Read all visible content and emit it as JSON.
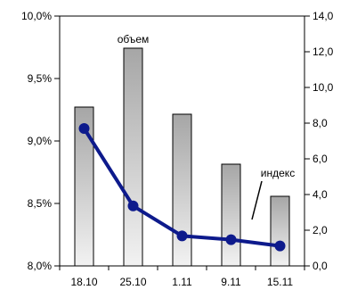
{
  "chart_data": {
    "type": "bar",
    "categories": [
      "18.10",
      "25.10",
      "1.11",
      "9.11",
      "15.11"
    ],
    "series": [
      {
        "name": "объем",
        "type": "bar",
        "axis": "right",
        "values": [
          8.9,
          12.2,
          8.5,
          5.7,
          3.9
        ]
      },
      {
        "name": "индекс",
        "type": "line",
        "axis": "left",
        "values": [
          9.1,
          8.48,
          8.24,
          8.21,
          8.16
        ]
      }
    ],
    "left_axis": {
      "ylim": [
        8.0,
        10.0
      ],
      "ticks": [
        "8,0%",
        "8,5%",
        "9,0%",
        "9,5%",
        "10,0%"
      ]
    },
    "right_axis": {
      "ylim": [
        0,
        14.0
      ],
      "ticks": [
        "0,0",
        "2,0",
        "4,0",
        "6,0",
        "8,0",
        "10,0",
        "12,0",
        "14,0"
      ]
    },
    "grid": false,
    "legend": "inline labels",
    "colors": {
      "line": "#0d1a8c",
      "bar_light": "#f2f2f2",
      "bar_dark": "#a6a6a6",
      "bar_stroke": "#000000"
    }
  }
}
